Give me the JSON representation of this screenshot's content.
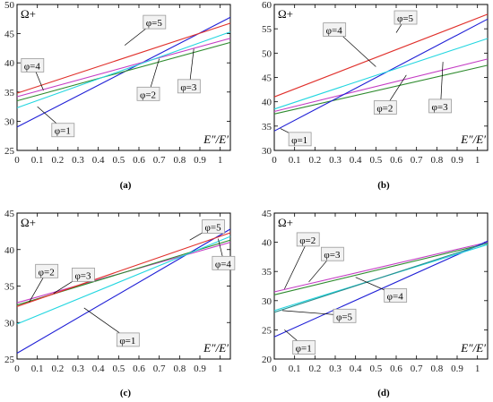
{
  "chart_data": [
    {
      "type": "line",
      "caption": "(a)",
      "ylabel": "Ω+",
      "xlabel": "E″/E′",
      "xlim": [
        0,
        1.05
      ],
      "ylim": [
        25,
        50
      ],
      "xticks": [
        "0",
        "0.1",
        "0.2",
        "0.3",
        "0.4",
        "0.5",
        "0.6",
        "0.7",
        "0.8",
        "0.9",
        "1"
      ],
      "yticks": [
        "25",
        "30",
        "35",
        "40",
        "45",
        "50"
      ],
      "series": [
        {
          "name": "φ=1",
          "color": "#1f1fd6",
          "points": [
            [
              0,
              29.0
            ],
            [
              1.05,
              47.8
            ]
          ]
        },
        {
          "name": "φ=2",
          "color": "#2e8b2e",
          "points": [
            [
              0,
              33.5
            ],
            [
              1.05,
              43.5
            ]
          ]
        },
        {
          "name": "φ=3",
          "color": "#c43dc4",
          "points": [
            [
              0,
              34.2
            ],
            [
              1.05,
              44.2
            ]
          ]
        },
        {
          "name": "φ=4",
          "color": "#22d6e0",
          "points": [
            [
              0,
              32.3
            ],
            [
              1.05,
              45.3
            ]
          ]
        },
        {
          "name": "φ=5",
          "color": "#e0302b",
          "points": [
            [
              0,
              34.8
            ],
            [
              1.05,
              46.8
            ]
          ]
        }
      ],
      "labels": [
        {
          "text": "φ=5",
          "at": [
            0.63,
            46.3
          ]
        },
        {
          "text": "φ=4",
          "at": [
            0.03,
            38.9
          ]
        },
        {
          "text": "φ=2",
          "at": [
            0.6,
            34.0
          ]
        },
        {
          "text": "φ=3",
          "at": [
            0.8,
            35.3
          ]
        },
        {
          "text": "φ=1",
          "at": [
            0.18,
            27.8
          ]
        }
      ]
    },
    {
      "type": "line",
      "caption": "(b)",
      "ylabel": "Ω+",
      "xlabel": "E″/E′",
      "xlim": [
        0,
        1.05
      ],
      "ylim": [
        30,
        60
      ],
      "xticks": [
        "0",
        "0.1",
        "0.2",
        "0.3",
        "0.4",
        "0.5",
        "0.6",
        "0.7",
        "0.8",
        "0.9",
        "1"
      ],
      "yticks": [
        "30",
        "35",
        "40",
        "45",
        "50",
        "55",
        "60"
      ],
      "series": [
        {
          "name": "φ=1",
          "color": "#e0302b",
          "points": [
            [
              0,
              41.0
            ],
            [
              1.05,
              58.0
            ]
          ]
        },
        {
          "name": "φ=2",
          "color": "#2e8b2e",
          "points": [
            [
              0,
              37.5
            ],
            [
              1.05,
              47.5
            ]
          ]
        },
        {
          "name": "φ=3",
          "color": "#c43dc4",
          "points": [
            [
              0,
              38.0
            ],
            [
              1.05,
              48.8
            ]
          ]
        },
        {
          "name": "φ=4",
          "color": "#1f1fd6",
          "points": [
            [
              0,
              34.0
            ],
            [
              1.05,
              57.0
            ]
          ]
        },
        {
          "name": "φ=5",
          "color": "#22d6e0",
          "points": [
            [
              0,
              38.5
            ],
            [
              1.05,
              53.0
            ]
          ]
        }
      ],
      "labels": [
        {
          "text": "φ=5",
          "at": [
            0.6,
            56.5
          ]
        },
        {
          "text": "φ=4",
          "at": [
            0.25,
            54.0
          ]
        },
        {
          "text": "φ=2",
          "at": [
            0.5,
            38.0
          ]
        },
        {
          "text": "φ=3",
          "at": [
            0.77,
            38.3
          ]
        },
        {
          "text": "φ=1",
          "at": [
            0.08,
            31.5
          ]
        }
      ]
    },
    {
      "type": "line",
      "caption": "(c)",
      "ylabel": "Ω+",
      "xlabel": "E″/E′",
      "xlim": [
        0,
        1.05
      ],
      "ylim": [
        25,
        45
      ],
      "xticks": [
        "0",
        "0.1",
        "0.2",
        "0.3",
        "0.4",
        "0.5",
        "0.6",
        "0.7",
        "0.8",
        "0.9",
        "1"
      ],
      "yticks": [
        "25",
        "30",
        "35",
        "40",
        "45"
      ],
      "series": [
        {
          "name": "φ=1",
          "color": "#1f1fd6",
          "points": [
            [
              0,
              25.8
            ],
            [
              1.05,
              42.8
            ]
          ]
        },
        {
          "name": "φ=2",
          "color": "#c43dc4",
          "points": [
            [
              0,
              32.7
            ],
            [
              1.05,
              41.0
            ]
          ]
        },
        {
          "name": "φ=3",
          "color": "#2e8b2e",
          "points": [
            [
              0,
              32.4
            ],
            [
              1.05,
              41.3
            ]
          ]
        },
        {
          "name": "φ=4",
          "color": "#22d6e0",
          "points": [
            [
              0,
              29.8
            ],
            [
              1.05,
              41.8
            ]
          ]
        },
        {
          "name": "φ=5",
          "color": "#e0302b",
          "points": [
            [
              0,
              32.2
            ],
            [
              1.05,
              42.3
            ]
          ]
        }
      ],
      "labels": [
        {
          "text": "φ=5",
          "at": [
            0.92,
            42.6
          ]
        },
        {
          "text": "φ=2",
          "at": [
            0.1,
            36.5
          ]
        },
        {
          "text": "φ=3",
          "at": [
            0.28,
            36.0
          ]
        },
        {
          "text": "φ=4",
          "at": [
            0.97,
            37.6
          ]
        },
        {
          "text": "φ=1",
          "at": [
            0.5,
            27.1
          ]
        }
      ]
    },
    {
      "type": "line",
      "caption": "(d)",
      "ylabel": "Ω+",
      "xlabel": "E″/E′",
      "xlim": [
        0,
        1.05
      ],
      "ylim": [
        20,
        45
      ],
      "xticks": [
        "0",
        "0.1",
        "0.2",
        "0.3",
        "0.4",
        "0.5",
        "0.6",
        "0.7",
        "0.8",
        "0.9",
        "1"
      ],
      "yticks": [
        "20",
        "25",
        "30",
        "35",
        "40",
        "45"
      ],
      "series": [
        {
          "name": "φ=1",
          "color": "#c43dc4",
          "points": [
            [
              0,
              31.5
            ],
            [
              1.05,
              40.0
            ]
          ]
        },
        {
          "name": "φ=2",
          "color": "#2e8b2e",
          "points": [
            [
              0,
              31.0
            ],
            [
              1.05,
              39.8
            ]
          ]
        },
        {
          "name": "φ=3",
          "color": "#1f1fd6",
          "points": [
            [
              0,
              23.8
            ],
            [
              1.05,
              40.2
            ]
          ]
        },
        {
          "name": "φ=4",
          "color": "#22d6e0",
          "points": [
            [
              0,
              28.3
            ],
            [
              1.05,
              39.6
            ]
          ]
        },
        {
          "name": "φ=5",
          "color": "#2a8f8f",
          "points": [
            [
              0,
              28.0
            ],
            [
              1.05,
              39.9
            ]
          ]
        }
      ],
      "labels": [
        {
          "text": "φ=2",
          "at": [
            0.12,
            39.8
          ]
        },
        {
          "text": "φ=3",
          "at": [
            0.24,
            37.3
          ]
        },
        {
          "text": "φ=4",
          "at": [
            0.55,
            30.2
          ]
        },
        {
          "text": "φ=5",
          "at": [
            0.3,
            26.7
          ]
        },
        {
          "text": "φ=1",
          "at": [
            0.1,
            21.3
          ]
        }
      ]
    }
  ]
}
